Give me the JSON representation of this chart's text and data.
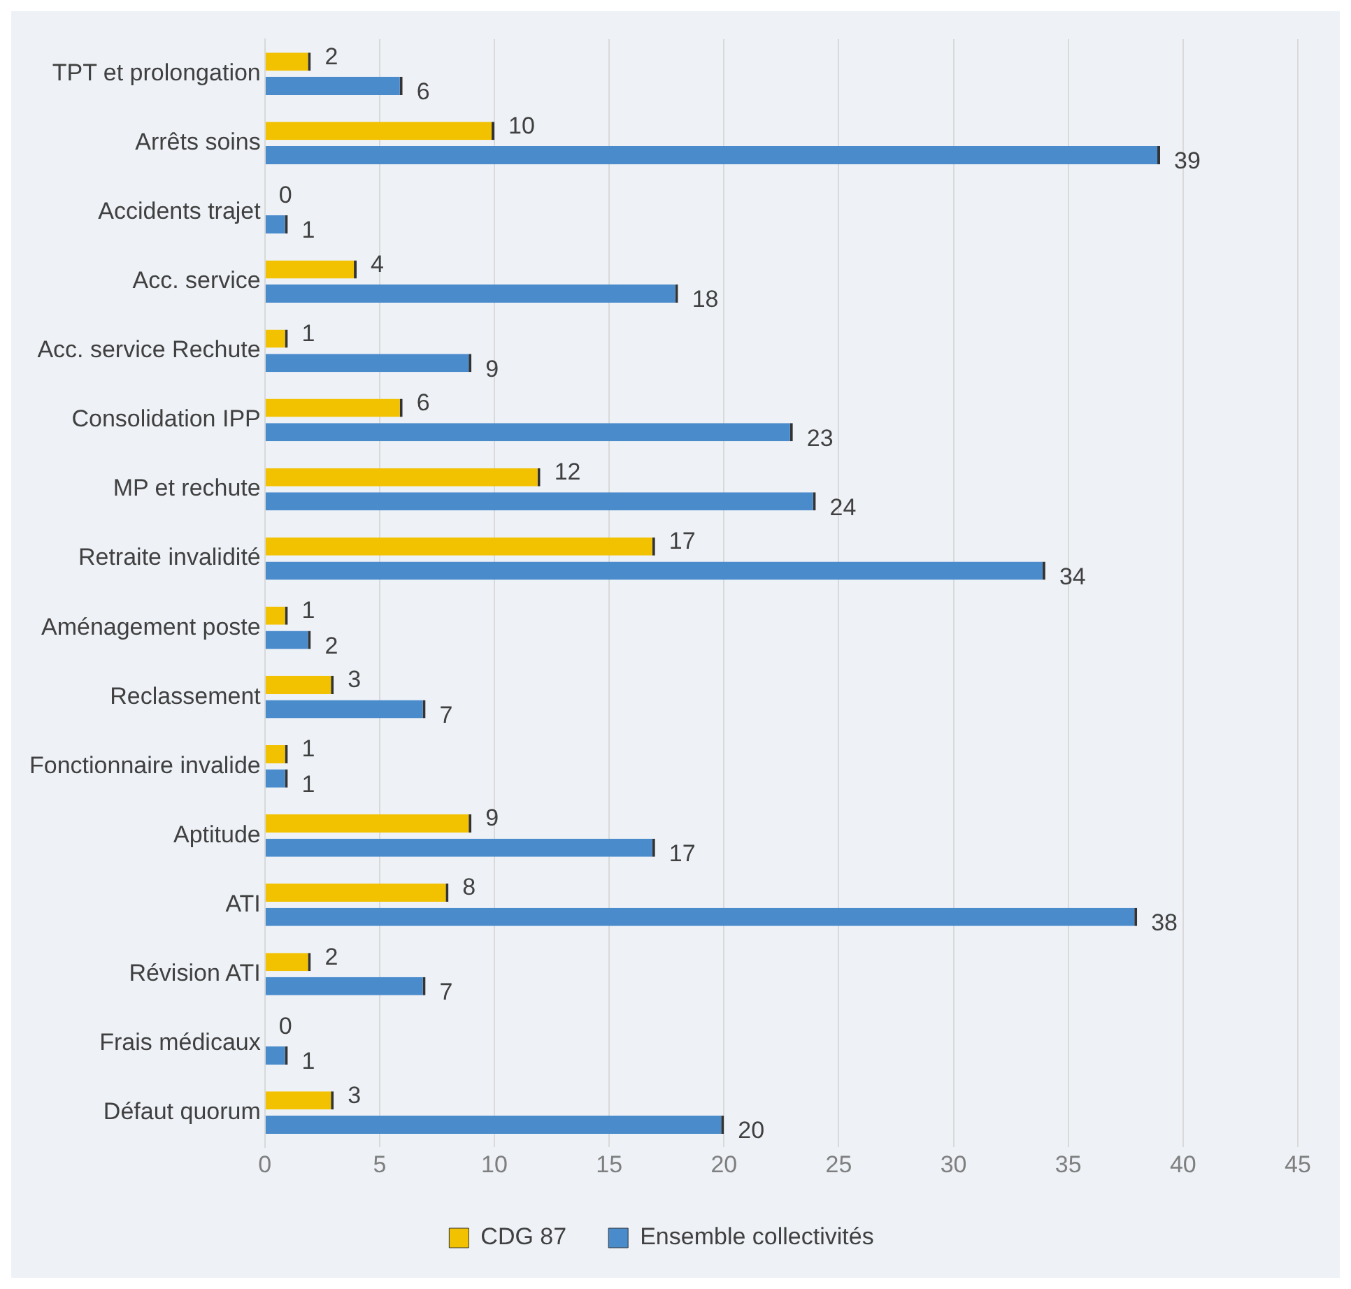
{
  "chart_data": {
    "type": "bar",
    "orientation": "horizontal",
    "categories": [
      "TPT et prolongation",
      "Arrêts soins",
      "Accidents trajet",
      "Acc. service",
      "Acc. service Rechute",
      "Consolidation IPP",
      "MP et rechute",
      "Retraite invalidité",
      "Aménagement poste",
      "Reclassement",
      "Fonctionnaire invalide",
      "Aptitude",
      "ATI",
      "Révision ATI",
      "Frais médicaux",
      "Défaut quorum"
    ],
    "series": [
      {
        "name": "CDG 87",
        "color": "#f2c200",
        "values": [
          2,
          10,
          0,
          4,
          1,
          6,
          12,
          17,
          1,
          3,
          1,
          9,
          8,
          2,
          0,
          3
        ]
      },
      {
        "name": "Ensemble collectivités",
        "color": "#4a8bcc",
        "values": [
          6,
          39,
          1,
          18,
          9,
          23,
          24,
          34,
          2,
          7,
          1,
          17,
          38,
          7,
          1,
          20
        ]
      }
    ],
    "xlim": [
      0,
      45
    ],
    "xticks": [
      0,
      5,
      10,
      15,
      20,
      25,
      30,
      35,
      40,
      45
    ],
    "grid": "x",
    "legend": "bottom",
    "data_labels": true
  }
}
